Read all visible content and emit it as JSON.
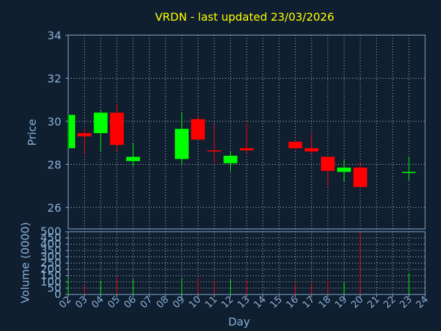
{
  "chart_data": {
    "type": "candlestick",
    "title": "VRDN - last updated 23/03/2026",
    "ylabel": "Price",
    "xlabel": "Day",
    "volume_label": "Volume (0000)",
    "price_ylim": [
      25,
      34
    ],
    "price_yticks": [
      "26",
      "28",
      "30",
      "32",
      "34"
    ],
    "volume_ylim": [
      0,
      500
    ],
    "volume_yticks": [
      "0",
      "50",
      "100",
      "150",
      "200",
      "250",
      "300",
      "350",
      "400",
      "450",
      "500"
    ],
    "x_ticks": [
      "02",
      "03",
      "04",
      "05",
      "06",
      "07",
      "08",
      "09",
      "10",
      "11",
      "12",
      "13",
      "14",
      "15",
      "16",
      "17",
      "18",
      "19",
      "20",
      "21",
      "22",
      "23",
      "24"
    ],
    "colors": {
      "up": "#00ff00",
      "down": "#ff0000",
      "title": "#ffff00",
      "axis": "#8ab0d8",
      "background": "#0f1f30"
    },
    "candles": [
      {
        "day": "02",
        "open": 28.75,
        "high": 30.3,
        "low": 28.75,
        "close": 30.3,
        "volume": 140
      },
      {
        "day": "03",
        "open": 29.45,
        "high": 29.65,
        "low": 28.45,
        "close": 29.3,
        "volume": 80
      },
      {
        "day": "04",
        "open": 29.45,
        "high": 30.5,
        "low": 28.6,
        "close": 30.4,
        "volume": 110
      },
      {
        "day": "05",
        "open": 30.4,
        "high": 30.8,
        "low": 28.6,
        "close": 28.9,
        "volume": 140
      },
      {
        "day": "06",
        "open": 28.15,
        "high": 29.0,
        "low": 27.9,
        "close": 28.35,
        "volume": 120
      },
      {
        "day": "09",
        "open": 28.25,
        "high": 30.4,
        "low": 28.0,
        "close": 29.65,
        "volume": 130
      },
      {
        "day": "10",
        "open": 30.1,
        "high": 30.3,
        "low": 29.15,
        "close": 29.15,
        "volume": 130
      },
      {
        "day": "11",
        "open": 28.65,
        "high": 29.85,
        "low": 28.05,
        "close": 28.6,
        "volume": 110
      },
      {
        "day": "12",
        "open": 28.05,
        "high": 28.6,
        "low": 27.65,
        "close": 28.4,
        "volume": 120
      },
      {
        "day": "13",
        "open": 28.75,
        "high": 29.9,
        "low": 28.45,
        "close": 28.65,
        "volume": 110
      },
      {
        "day": "16",
        "open": 29.05,
        "high": 29.05,
        "low": 28.7,
        "close": 28.75,
        "volume": 90
      },
      {
        "day": "17",
        "open": 28.75,
        "high": 29.4,
        "low": 28.5,
        "close": 28.6,
        "volume": 90
      },
      {
        "day": "18",
        "open": 28.35,
        "high": 28.35,
        "low": 27.0,
        "close": 27.7,
        "volume": 110
      },
      {
        "day": "19",
        "open": 27.65,
        "high": 28.2,
        "low": 27.2,
        "close": 27.85,
        "volume": 100
      },
      {
        "day": "20",
        "open": 27.85,
        "high": 28.1,
        "low": 26.95,
        "close": 26.95,
        "volume": 500
      },
      {
        "day": "23",
        "open": 27.6,
        "high": 28.35,
        "low": 27.25,
        "close": 27.65,
        "volume": 170
      }
    ]
  }
}
